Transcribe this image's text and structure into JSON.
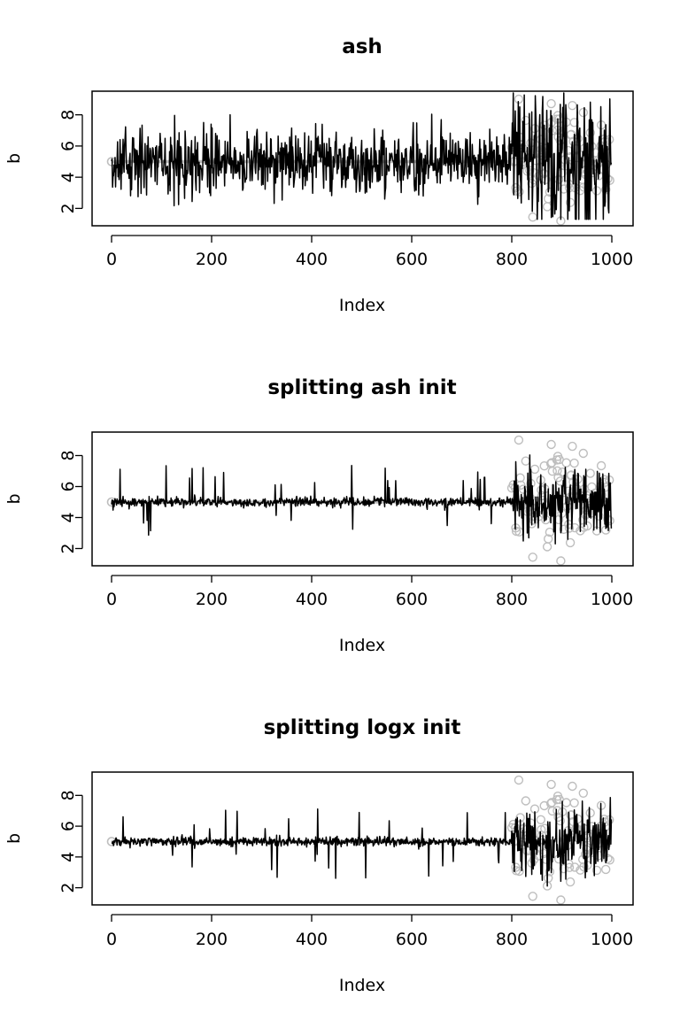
{
  "chart_data": [
    {
      "type": "line",
      "title": "ash",
      "xlabel": "Index",
      "ylabel": "b",
      "xlim": [
        0,
        1000
      ],
      "ylim": [
        1,
        9.4
      ],
      "xticks": [
        0,
        200,
        400,
        600,
        800,
        1000
      ],
      "yticks": [
        2,
        4,
        6,
        8
      ],
      "series": [
        {
          "kind": "points",
          "color": "#bebebe",
          "spread_start": 800,
          "spread_end": 1000,
          "y_range": [
            1.2,
            9.0
          ]
        },
        {
          "kind": "line",
          "color": "#000000",
          "noise_low": 1.0,
          "noise_high": 2.2,
          "min": 1.3,
          "max": 9.4
        }
      ]
    },
    {
      "type": "line",
      "title": "splitting ash init",
      "xlabel": "Index",
      "ylabel": "b",
      "xlim": [
        0,
        1000
      ],
      "ylim": [
        1,
        9.4
      ],
      "xticks": [
        0,
        200,
        400,
        600,
        800,
        1000
      ],
      "yticks": [
        2,
        4,
        6,
        8
      ],
      "series": [
        {
          "kind": "points",
          "color": "#bebebe",
          "spread_start": 800,
          "spread_end": 1000,
          "y_range": [
            1.2,
            9.0
          ]
        },
        {
          "kind": "line",
          "color": "#000000",
          "noise_low": 0.15,
          "noise_high": 1.1,
          "min": 2.0,
          "max": 8.5
        }
      ]
    },
    {
      "type": "line",
      "title": "splitting logx init",
      "xlabel": "Index",
      "ylabel": "b",
      "xlim": [
        0,
        1000
      ],
      "ylim": [
        1,
        9.4
      ],
      "xticks": [
        0,
        200,
        400,
        600,
        800,
        1000
      ],
      "yticks": [
        2,
        4,
        6,
        8
      ],
      "series": [
        {
          "kind": "points",
          "color": "#bebebe",
          "spread_start": 800,
          "spread_end": 1000,
          "y_range": [
            1.2,
            9.0
          ]
        },
        {
          "kind": "line",
          "color": "#000000",
          "noise_low": 0.15,
          "noise_high": 1.1,
          "min": 2.0,
          "max": 8.5
        }
      ]
    }
  ]
}
